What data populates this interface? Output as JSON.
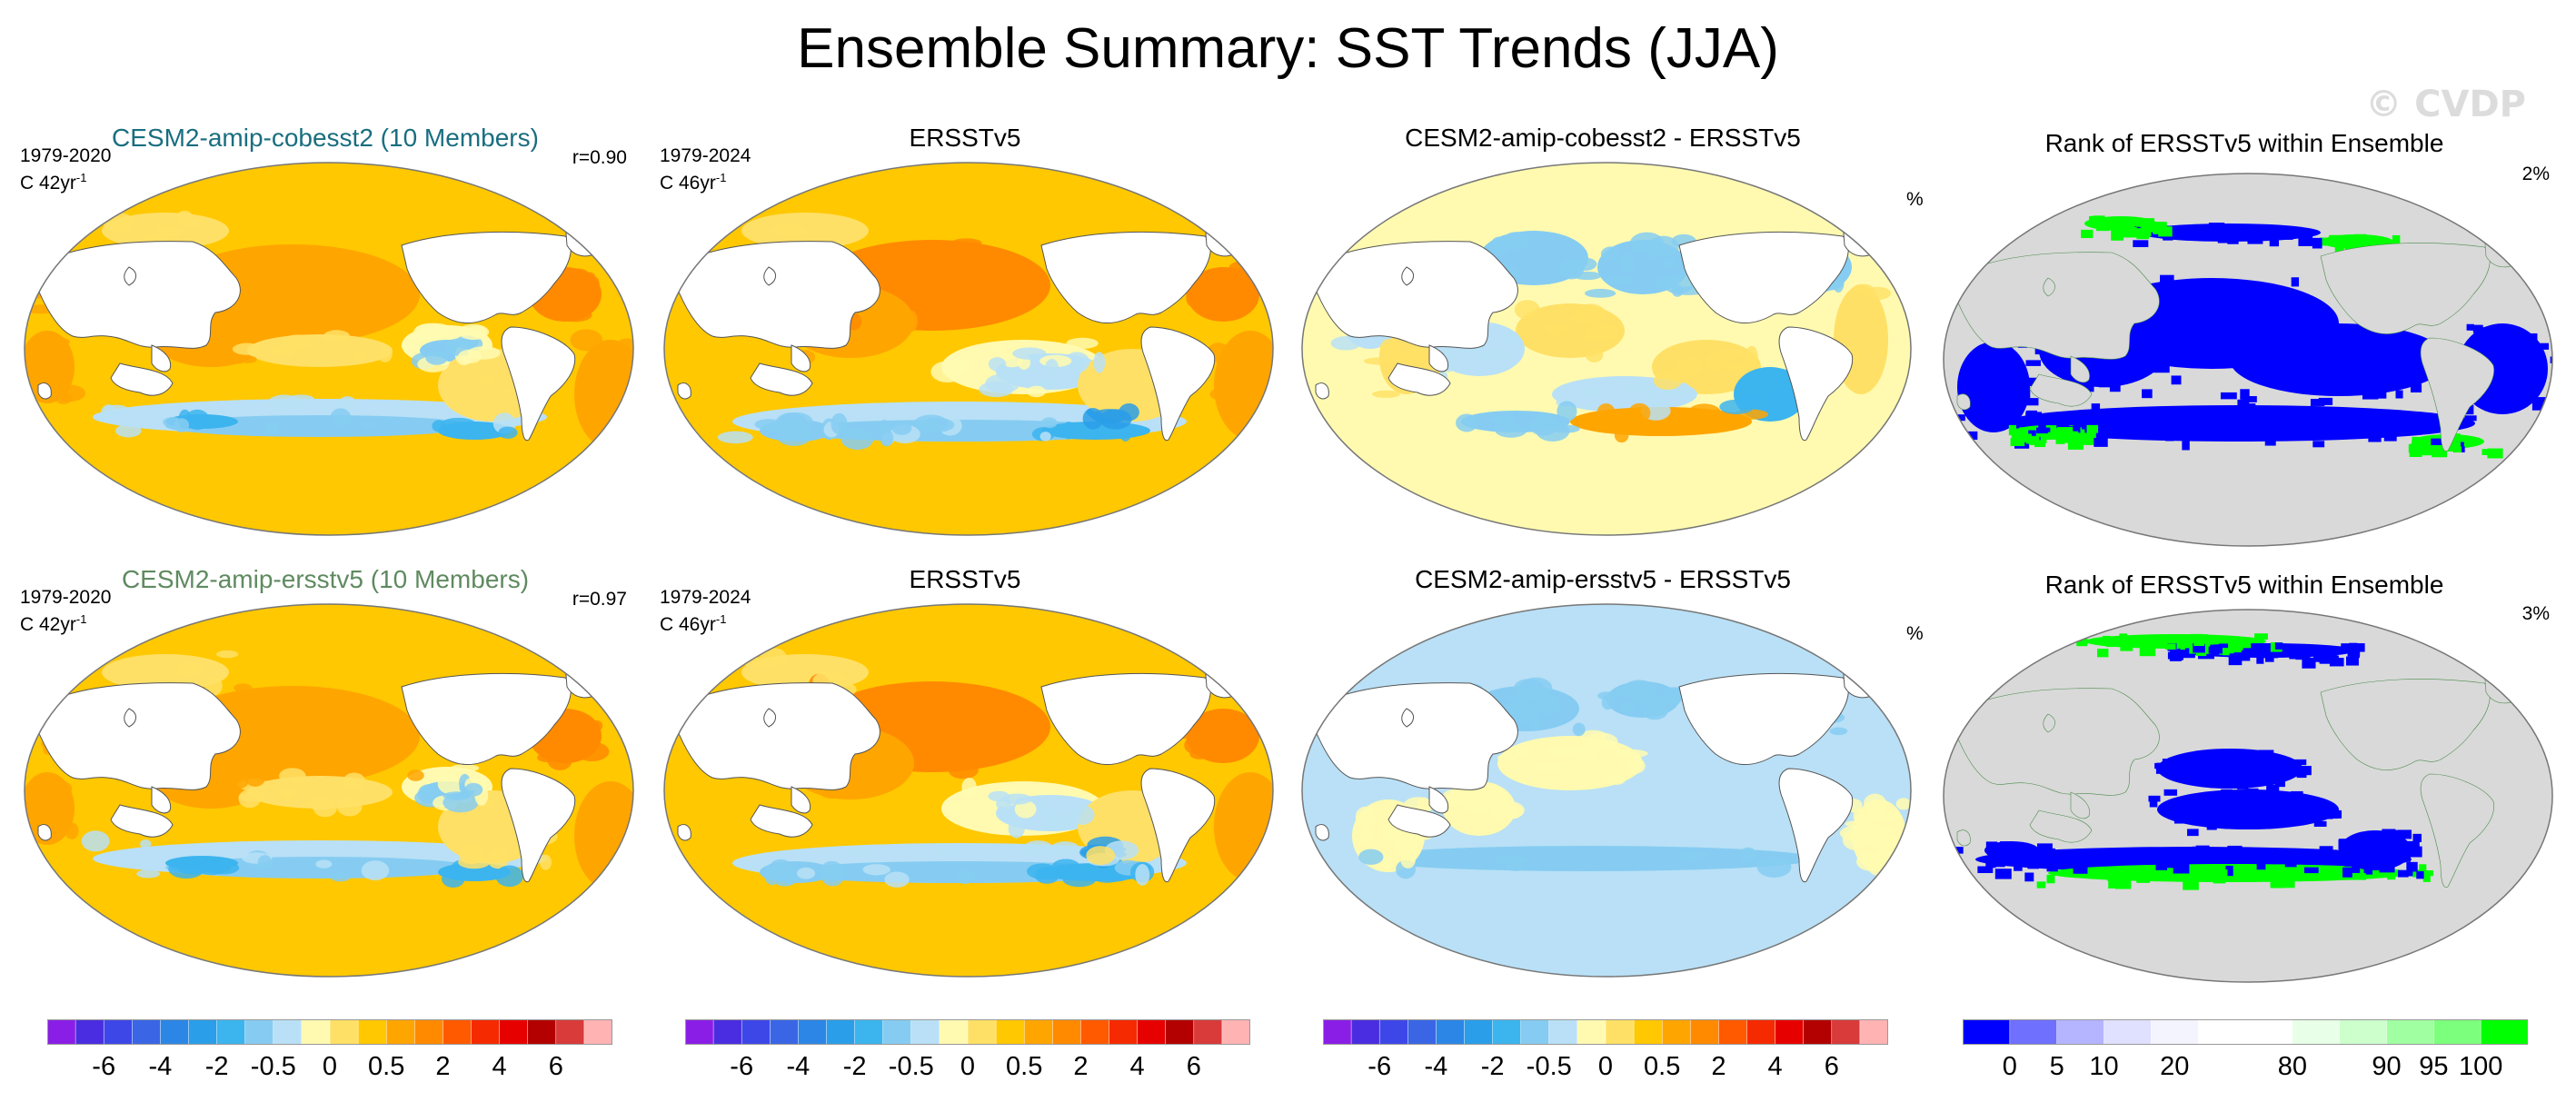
{
  "title": "Ensemble Summary: SST Trends (JJA)",
  "watermark": "© CVDP",
  "panels": [
    {
      "title": "CESM2-amip-cobesst2 (10 Members)",
      "years": "1979-2020",
      "units_prefix": "C 42yr",
      "units_sup": "-1",
      "r": "r=0.90",
      "kind": "model"
    },
    {
      "title": "ERSSTv5",
      "years": "1979-2024",
      "units_prefix": "C 46yr",
      "units_sup": "-1",
      "r": "",
      "kind": "obs"
    },
    {
      "title": "CESM2-amip-cobesst2 - ERSSTv5",
      "years": "",
      "units_prefix": "",
      "units_sup": "",
      "r": "",
      "kind": "diff1"
    },
    {
      "title": "Rank of ERSSTv5 within Ensemble",
      "pct_label": "%",
      "rank_pct": "2%",
      "kind": "rank1"
    },
    {
      "title": "CESM2-amip-ersstv5 (10 Members)",
      "years": "1979-2020",
      "units_prefix": "C 42yr",
      "units_sup": "-1",
      "r": "r=0.97",
      "kind": "model"
    },
    {
      "title": "ERSSTv5",
      "years": "1979-2024",
      "units_prefix": "C 46yr",
      "units_sup": "-1",
      "r": "",
      "kind": "obs"
    },
    {
      "title": "CESM2-amip-ersstv5 - ERSSTv5",
      "years": "",
      "units_prefix": "",
      "units_sup": "",
      "r": "",
      "kind": "diff2"
    },
    {
      "title": "Rank of ERSSTv5 within Ensemble",
      "pct_label": "%",
      "rank_pct": "3%",
      "kind": "rank2"
    }
  ],
  "colorbars": {
    "trend_colors": [
      "#8b1ee6",
      "#4a2de0",
      "#3d47e8",
      "#3a66e6",
      "#2c86e6",
      "#2a9ee8",
      "#3cb4ee",
      "#86ccf2",
      "#b9e0f6",
      "#fffab0",
      "#ffe066",
      "#ffc800",
      "#ffa500",
      "#ff8a00",
      "#ff5a00",
      "#f52a00",
      "#e60000",
      "#b30000",
      "#d93a3a",
      "#ffb3b3"
    ],
    "trend_labels": [
      "-6",
      "-4",
      "-2",
      "-0.5",
      "0",
      "0.5",
      "2",
      "4",
      "6"
    ],
    "rank_colors": [
      "#0000ff",
      "#7070ff",
      "#b4b4ff",
      "#e0e0ff",
      "#f4f4ff",
      "#ffffff",
      "#ffffff",
      "#e8ffe8",
      "#ccffcc",
      "#a0ffa0",
      "#7cff7c",
      "#00ff00"
    ],
    "rank_labels": [
      "0",
      "5",
      "10",
      "20",
      "80",
      "90",
      "95",
      "100"
    ]
  },
  "chart_data": [
    {
      "type": "heatmap",
      "title": "CESM2-amip-cobesst2 (10 Members)",
      "period": "1979-2020",
      "units": "C 42yr-1",
      "pattern_correlation": 0.9,
      "levels": [
        -6,
        -4,
        -2,
        -0.5,
        0,
        0.5,
        2,
        4,
        6
      ]
    },
    {
      "type": "heatmap",
      "title": "ERSSTv5",
      "period": "1979-2024",
      "units": "C 46yr-1",
      "levels": [
        -6,
        -4,
        -2,
        -0.5,
        0,
        0.5,
        2,
        4,
        6
      ]
    },
    {
      "type": "heatmap",
      "title": "CESM2-amip-cobesst2 - ERSSTv5",
      "levels": [
        -6,
        -4,
        -2,
        -0.5,
        0,
        0.5,
        2,
        4,
        6
      ]
    },
    {
      "type": "heatmap",
      "title": "Rank of ERSSTv5 within Ensemble",
      "units": "%",
      "area_outside_5_95": "2%",
      "levels": [
        0,
        5,
        10,
        20,
        80,
        90,
        95,
        100
      ]
    },
    {
      "type": "heatmap",
      "title": "CESM2-amip-ersstv5 (10 Members)",
      "period": "1979-2020",
      "units": "C 42yr-1",
      "pattern_correlation": 0.97,
      "levels": [
        -6,
        -4,
        -2,
        -0.5,
        0,
        0.5,
        2,
        4,
        6
      ]
    },
    {
      "type": "heatmap",
      "title": "ERSSTv5",
      "period": "1979-2024",
      "units": "C 46yr-1",
      "levels": [
        -6,
        -4,
        -2,
        -0.5,
        0,
        0.5,
        2,
        4,
        6
      ]
    },
    {
      "type": "heatmap",
      "title": "CESM2-amip-ersstv5 - ERSSTv5",
      "levels": [
        -6,
        -4,
        -2,
        -0.5,
        0,
        0.5,
        2,
        4,
        6
      ]
    },
    {
      "type": "heatmap",
      "title": "Rank of ERSSTv5 within Ensemble",
      "units": "%",
      "area_outside_5_95": "3%",
      "levels": [
        0,
        5,
        10,
        20,
        80,
        90,
        95,
        100
      ]
    }
  ]
}
